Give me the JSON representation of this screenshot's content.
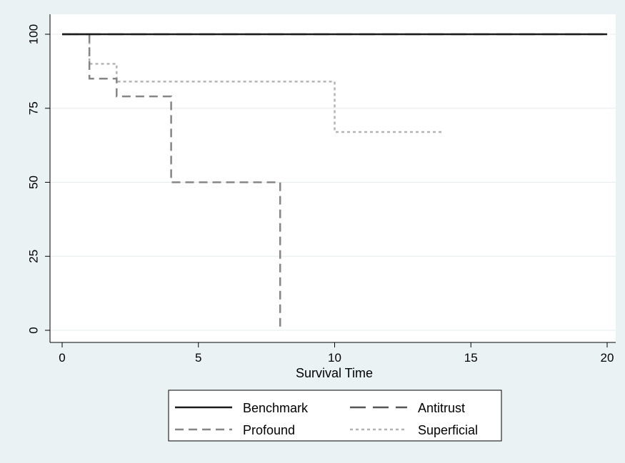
{
  "chart_data": {
    "type": "line",
    "title": "",
    "xlabel": "Survival Time",
    "ylabel": "",
    "xlim": [
      0,
      20
    ],
    "ylim": [
      0,
      100
    ],
    "xticks": [
      0,
      5,
      10,
      15,
      20
    ],
    "yticks": [
      0,
      25,
      50,
      75,
      100
    ],
    "grid": "horizontal",
    "legend_position": "bottom",
    "step": true,
    "series": [
      {
        "name": "Benchmark",
        "style": "solid",
        "color": "#1a1a1a",
        "x": [
          0,
          20
        ],
        "y": [
          100,
          100
        ]
      },
      {
        "name": "Antitrust",
        "style": "long-dash",
        "color": "#555555",
        "x": [
          0,
          20
        ],
        "y": [
          100,
          100
        ]
      },
      {
        "name": "Profound",
        "style": "dash",
        "color": "#858585",
        "x": [
          0,
          1,
          2,
          4,
          8
        ],
        "y": [
          100,
          85,
          79,
          50,
          0
        ]
      },
      {
        "name": "Superficial",
        "style": "dot",
        "color": "#b3b3b3",
        "x": [
          0,
          1,
          2,
          10,
          14
        ],
        "y": [
          100,
          90,
          84,
          67,
          67
        ]
      }
    ]
  }
}
